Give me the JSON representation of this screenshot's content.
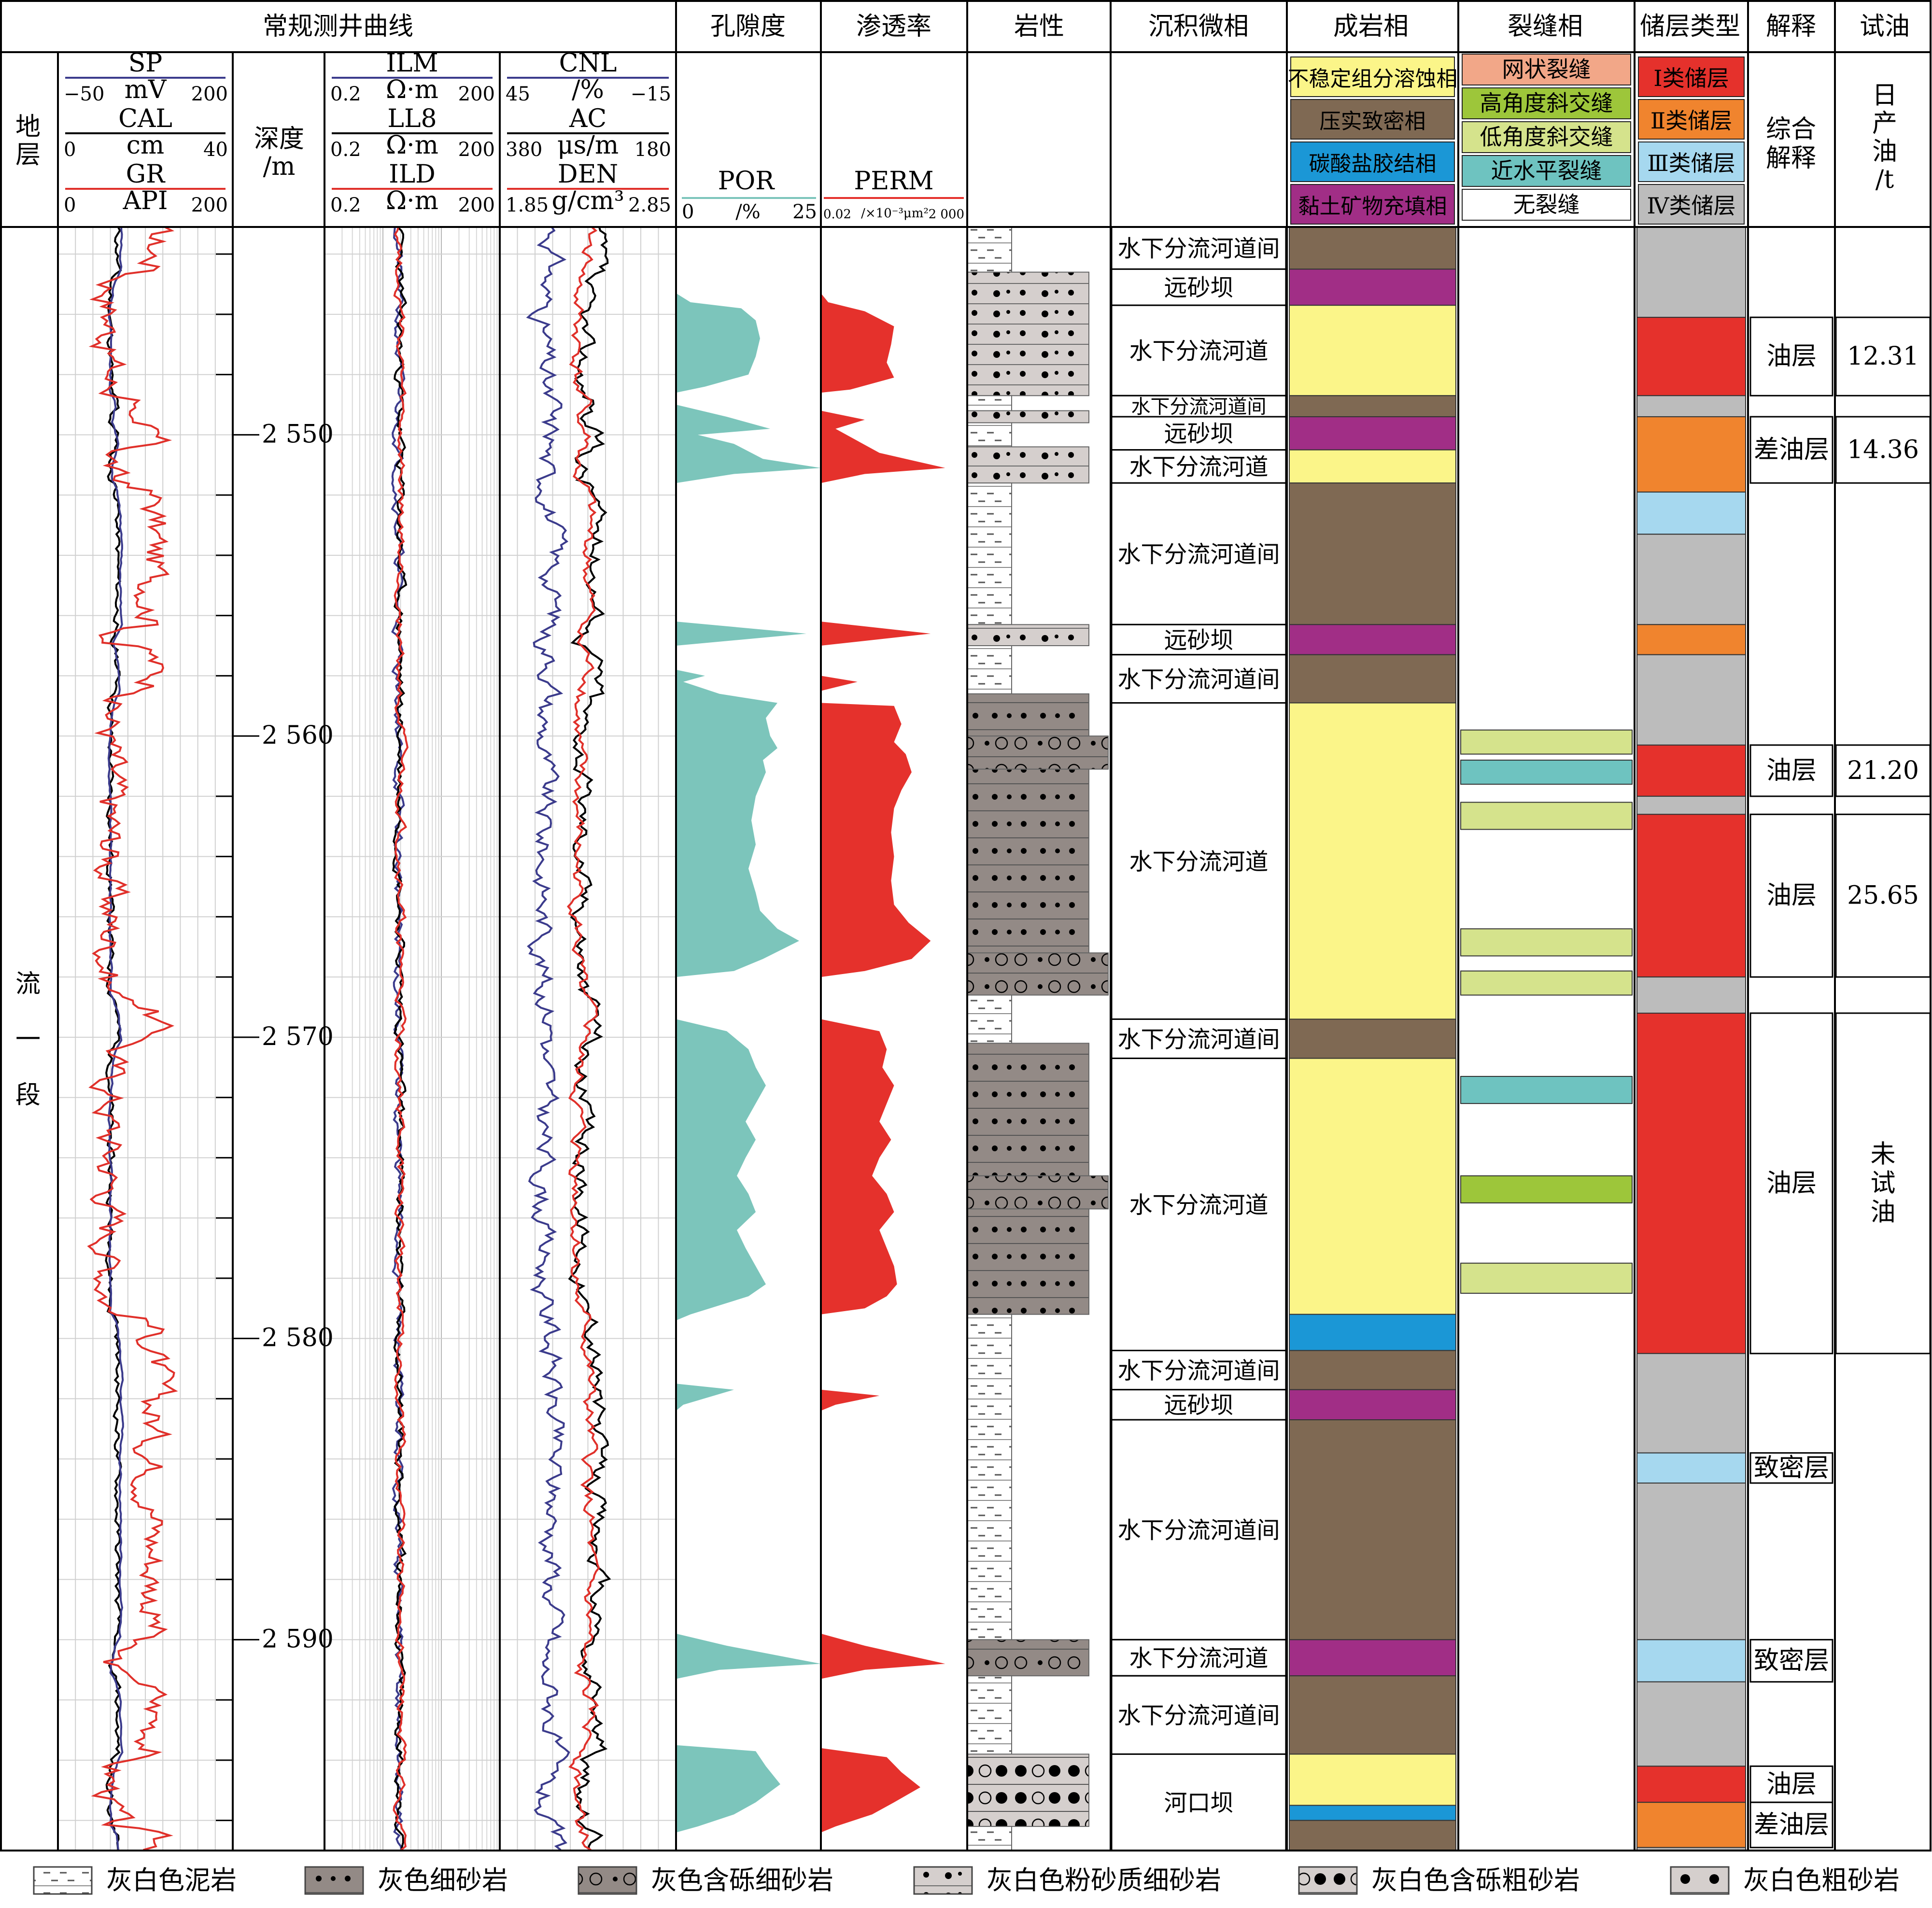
{
  "header": {
    "curves_group": "常规测井曲线",
    "porosity": "孔隙度",
    "permeability": "渗透率",
    "lithology": "岩性",
    "microfacies": "沉积微相",
    "diagenetic": "成岩相",
    "fracture": "裂缝相",
    "reservoir_type": "储层类型",
    "interpretation": "解释",
    "oil_test": "试油"
  },
  "subheader": {
    "formation": "地层",
    "depth_label": "深度",
    "depth_unit": "/m",
    "track1": [
      {
        "name": "SP",
        "unit": "mV",
        "min": "−50",
        "max": "200",
        "color": "#3b3b8c"
      },
      {
        "name": "CAL",
        "unit": "cm",
        "min": "0",
        "max": "40",
        "color": "#000000"
      },
      {
        "name": "GR",
        "unit": "API",
        "min": "0",
        "max": "200",
        "color": "#e0302a"
      }
    ],
    "track2": [
      {
        "name": "ILM",
        "unit": "Ω·m",
        "min": "0.2",
        "max": "200",
        "color": "#3b3b8c"
      },
      {
        "name": "LL8",
        "unit": "Ω·m",
        "min": "0.2",
        "max": "200",
        "color": "#000000"
      },
      {
        "name": "ILD",
        "unit": "Ω·m",
        "min": "0.2",
        "max": "200",
        "color": "#e0302a"
      }
    ],
    "track3": [
      {
        "name": "CNL",
        "unit": "/%",
        "min": "45",
        "max": "−15",
        "color": "#3b3b8c"
      },
      {
        "name": "AC",
        "unit": "μs/m",
        "min": "380",
        "max": "180",
        "color": "#000000"
      },
      {
        "name": "DEN",
        "unit": "g/cm³",
        "min": "1.85",
        "max": "2.85",
        "color": "#e0302a"
      }
    ],
    "por": {
      "name": "POR",
      "unit": "/%",
      "min": "0",
      "max": "25",
      "color": "#7cc5bb"
    },
    "perm": {
      "name": "PERM",
      "unit": "/×10⁻³μm²",
      "min": "0.02",
      "max": "2 000",
      "color": "#e5312c"
    },
    "interp_label": "综合解释",
    "oil_label": "日产油/t"
  },
  "diagenetic_legend": [
    {
      "label": "不稳定组分溶蚀相",
      "color": "#fbf589"
    },
    {
      "label": "压实致密相",
      "color": "#7f6953"
    },
    {
      "label": "碳酸盐胶结相",
      "color": "#1b97d6"
    },
    {
      "label": "黏土矿物充填相",
      "color": "#a12e86"
    }
  ],
  "fracture_legend": [
    {
      "label": "网状裂缝",
      "color": "#f2a788"
    },
    {
      "label": "高角度斜交缝",
      "color": "#9dc63a"
    },
    {
      "label": "低角度斜交缝",
      "color": "#d5e38c"
    },
    {
      "label": "近水平裂缝",
      "color": "#6ec3c0"
    },
    {
      "label": "无裂缝",
      "color": "#ffffff"
    }
  ],
  "reservoir_legend": [
    {
      "label": "Ⅰ类储层",
      "color": "#e5312c"
    },
    {
      "label": "Ⅱ类储层",
      "color": "#f0842e"
    },
    {
      "label": "Ⅲ类储层",
      "color": "#a6d8ef"
    },
    {
      "label": "Ⅳ类储层",
      "color": "#bcbcbc"
    }
  ],
  "formation_name": "流一段",
  "depth_scale": {
    "top": 2543.1,
    "bottom": 2597.0,
    "ticks": [
      2550,
      2560,
      2570,
      2580,
      2590
    ],
    "tick_labels": [
      "2 550",
      "2 560",
      "2 570",
      "2 580",
      "2 590"
    ]
  },
  "microfacies": [
    {
      "top": 2543.1,
      "bottom": 2544.5,
      "label": "水下分流河道间"
    },
    {
      "top": 2544.5,
      "bottom": 2545.7,
      "label": "远砂坝"
    },
    {
      "top": 2545.7,
      "bottom": 2548.7,
      "label": "水下分流河道"
    },
    {
      "top": 2548.7,
      "bottom": 2549.4,
      "label": "水下分流河道间"
    },
    {
      "top": 2549.4,
      "bottom": 2550.5,
      "label": "远砂坝"
    },
    {
      "top": 2550.5,
      "bottom": 2551.6,
      "label": "水下分流河道"
    },
    {
      "top": 2551.6,
      "bottom": 2556.3,
      "label": "水下分流河道间"
    },
    {
      "top": 2556.3,
      "bottom": 2557.3,
      "label": "远砂坝"
    },
    {
      "top": 2557.3,
      "bottom": 2558.9,
      "label": "水下分流河道间"
    },
    {
      "top": 2558.9,
      "bottom": 2569.4,
      "label": "水下分流河道"
    },
    {
      "top": 2569.4,
      "bottom": 2570.7,
      "label": "水下分流河道间"
    },
    {
      "top": 2570.7,
      "bottom": 2580.4,
      "label": "水下分流河道"
    },
    {
      "top": 2580.4,
      "bottom": 2581.7,
      "label": "水下分流河道间"
    },
    {
      "top": 2581.7,
      "bottom": 2582.7,
      "label": "远砂坝"
    },
    {
      "top": 2582.7,
      "bottom": 2590.0,
      "label": "水下分流河道间"
    },
    {
      "top": 2590.0,
      "bottom": 2591.2,
      "label": "水下分流河道"
    },
    {
      "top": 2591.2,
      "bottom": 2593.8,
      "label": "水下分流河道间"
    },
    {
      "top": 2593.8,
      "bottom": 2597.0,
      "label": "河口坝"
    }
  ],
  "diagenetic_intervals": [
    {
      "top": 2543.1,
      "bottom": 2544.5,
      "color": "#7f6953"
    },
    {
      "top": 2544.5,
      "bottom": 2545.7,
      "color": "#a12e86"
    },
    {
      "top": 2545.7,
      "bottom": 2548.7,
      "color": "#fbf589"
    },
    {
      "top": 2548.7,
      "bottom": 2549.4,
      "color": "#7f6953"
    },
    {
      "top": 2549.4,
      "bottom": 2550.5,
      "color": "#a12e86"
    },
    {
      "top": 2550.5,
      "bottom": 2551.6,
      "color": "#fbf589"
    },
    {
      "top": 2551.6,
      "bottom": 2556.3,
      "color": "#7f6953"
    },
    {
      "top": 2556.3,
      "bottom": 2557.3,
      "color": "#a12e86"
    },
    {
      "top": 2557.3,
      "bottom": 2558.9,
      "color": "#7f6953"
    },
    {
      "top": 2558.9,
      "bottom": 2569.4,
      "color": "#fbf589"
    },
    {
      "top": 2569.4,
      "bottom": 2570.7,
      "color": "#7f6953"
    },
    {
      "top": 2570.7,
      "bottom": 2579.2,
      "color": "#fbf589"
    },
    {
      "top": 2579.2,
      "bottom": 2580.4,
      "color": "#1b97d6"
    },
    {
      "top": 2580.4,
      "bottom": 2581.7,
      "color": "#7f6953"
    },
    {
      "top": 2581.7,
      "bottom": 2582.7,
      "color": "#a12e86"
    },
    {
      "top": 2582.7,
      "bottom": 2590.0,
      "color": "#7f6953"
    },
    {
      "top": 2590.0,
      "bottom": 2591.2,
      "color": "#a12e86"
    },
    {
      "top": 2591.2,
      "bottom": 2593.8,
      "color": "#7f6953"
    },
    {
      "top": 2593.8,
      "bottom": 2595.5,
      "color": "#fbf589"
    },
    {
      "top": 2595.5,
      "bottom": 2596.0,
      "color": "#1b97d6"
    },
    {
      "top": 2596.0,
      "bottom": 2597.0,
      "color": "#7f6953"
    }
  ],
  "fracture_intervals": [
    {
      "top": 2559.8,
      "bottom": 2560.6,
      "color": "#d5e38c"
    },
    {
      "top": 2560.8,
      "bottom": 2561.6,
      "color": "#6ec3c0"
    },
    {
      "top": 2562.2,
      "bottom": 2563.1,
      "color": "#d5e38c"
    },
    {
      "top": 2566.4,
      "bottom": 2567.3,
      "color": "#d5e38c"
    },
    {
      "top": 2567.8,
      "bottom": 2568.6,
      "color": "#d5e38c"
    },
    {
      "top": 2571.3,
      "bottom": 2572.2,
      "color": "#6ec3c0"
    },
    {
      "top": 2574.6,
      "bottom": 2575.5,
      "color": "#9dc63a"
    },
    {
      "top": 2577.5,
      "bottom": 2578.5,
      "color": "#d5e38c"
    }
  ],
  "reservoir_intervals": [
    {
      "top": 2543.1,
      "bottom": 2546.1,
      "color": "#bcbcbc"
    },
    {
      "top": 2546.1,
      "bottom": 2548.7,
      "color": "#e5312c"
    },
    {
      "top": 2548.7,
      "bottom": 2549.4,
      "color": "#bcbcbc"
    },
    {
      "top": 2549.4,
      "bottom": 2551.9,
      "color": "#f0842e"
    },
    {
      "top": 2551.9,
      "bottom": 2553.3,
      "color": "#a6d8ef"
    },
    {
      "top": 2553.3,
      "bottom": 2556.3,
      "color": "#bcbcbc"
    },
    {
      "top": 2556.3,
      "bottom": 2557.3,
      "color": "#f0842e"
    },
    {
      "top": 2557.3,
      "bottom": 2560.3,
      "color": "#bcbcbc"
    },
    {
      "top": 2560.3,
      "bottom": 2562.0,
      "color": "#e5312c"
    },
    {
      "top": 2562.0,
      "bottom": 2562.6,
      "color": "#bcbcbc"
    },
    {
      "top": 2562.6,
      "bottom": 2568.0,
      "color": "#e5312c"
    },
    {
      "top": 2568.0,
      "bottom": 2569.2,
      "color": "#bcbcbc"
    },
    {
      "top": 2569.2,
      "bottom": 2580.5,
      "color": "#e5312c"
    },
    {
      "top": 2580.5,
      "bottom": 2583.8,
      "color": "#bcbcbc"
    },
    {
      "top": 2583.8,
      "bottom": 2584.8,
      "color": "#a6d8ef"
    },
    {
      "top": 2584.8,
      "bottom": 2590.0,
      "color": "#bcbcbc"
    },
    {
      "top": 2590.0,
      "bottom": 2591.4,
      "color": "#a6d8ef"
    },
    {
      "top": 2591.4,
      "bottom": 2594.2,
      "color": "#bcbcbc"
    },
    {
      "top": 2594.2,
      "bottom": 2595.4,
      "color": "#e5312c"
    },
    {
      "top": 2595.4,
      "bottom": 2596.9,
      "color": "#f0842e"
    },
    {
      "top": 2596.9,
      "bottom": 2597.0,
      "color": "#bcbcbc"
    }
  ],
  "interpretation": [
    {
      "top": 2546.1,
      "bottom": 2548.7,
      "label": "油层"
    },
    {
      "top": 2549.4,
      "bottom": 2551.6,
      "label": "差油层"
    },
    {
      "top": 2560.3,
      "bottom": 2562.0,
      "label": "油层"
    },
    {
      "top": 2562.6,
      "bottom": 2568.0,
      "label": "油层"
    },
    {
      "top": 2569.2,
      "bottom": 2580.5,
      "label": "油层"
    },
    {
      "top": 2583.8,
      "bottom": 2584.8,
      "label": "致密层"
    },
    {
      "top": 2590.0,
      "bottom": 2591.4,
      "label": "致密层"
    },
    {
      "top": 2594.2,
      "bottom": 2595.4,
      "label": "油层"
    },
    {
      "top": 2595.4,
      "bottom": 2596.9,
      "label": "差油层"
    }
  ],
  "oil_test": [
    {
      "top": 2546.1,
      "bottom": 2548.7,
      "label": "12.31"
    },
    {
      "top": 2549.4,
      "bottom": 2551.6,
      "label": "14.36"
    },
    {
      "top": 2560.3,
      "bottom": 2562.0,
      "label": "21.20"
    },
    {
      "top": 2562.6,
      "bottom": 2568.0,
      "label": "25.65"
    },
    {
      "top": 2569.2,
      "bottom": 2580.5,
      "label": "未试油"
    }
  ],
  "lithology_intervals": [
    {
      "top": 2543.1,
      "bottom": 2544.6,
      "type": "mud"
    },
    {
      "top": 2544.6,
      "bottom": 2548.7,
      "type": "silty"
    },
    {
      "top": 2548.7,
      "bottom": 2549.2,
      "type": "mud"
    },
    {
      "top": 2549.2,
      "bottom": 2549.6,
      "type": "silty"
    },
    {
      "top": 2549.6,
      "bottom": 2550.4,
      "type": "mud"
    },
    {
      "top": 2550.4,
      "bottom": 2551.6,
      "type": "silty"
    },
    {
      "top": 2551.6,
      "bottom": 2556.3,
      "type": "mud"
    },
    {
      "top": 2556.3,
      "bottom": 2557.0,
      "type": "silty"
    },
    {
      "top": 2557.0,
      "bottom": 2558.6,
      "type": "mud"
    },
    {
      "top": 2558.6,
      "bottom": 2560.0,
      "type": "fine"
    },
    {
      "top": 2560.0,
      "bottom": 2561.1,
      "type": "pebbly_fine"
    },
    {
      "top": 2561.1,
      "bottom": 2567.2,
      "type": "fine"
    },
    {
      "top": 2567.2,
      "bottom": 2568.6,
      "type": "pebbly_fine"
    },
    {
      "top": 2568.6,
      "bottom": 2570.2,
      "type": "mud"
    },
    {
      "top": 2570.2,
      "bottom": 2574.6,
      "type": "fine"
    },
    {
      "top": 2574.6,
      "bottom": 2575.7,
      "type": "pebbly_fine"
    },
    {
      "top": 2575.7,
      "bottom": 2579.2,
      "type": "fine"
    },
    {
      "top": 2579.2,
      "bottom": 2590.0,
      "type": "mud"
    },
    {
      "top": 2590.0,
      "bottom": 2591.2,
      "type": "pebbly_fine"
    },
    {
      "top": 2591.2,
      "bottom": 2593.8,
      "type": "mud"
    },
    {
      "top": 2593.8,
      "bottom": 2596.2,
      "type": "pebbly_coarse"
    },
    {
      "top": 2596.2,
      "bottom": 2597.0,
      "type": "mud"
    }
  ],
  "lith_legend": [
    {
      "type": "mud",
      "label": "灰白色泥岩"
    },
    {
      "type": "fine",
      "label": "灰色细砂岩"
    },
    {
      "type": "pebbly_fine",
      "label": "灰色含砾细砂岩"
    },
    {
      "type": "silty",
      "label": "灰白色粉砂质细砂岩"
    },
    {
      "type": "pebbly_coarse",
      "label": "灰白色含砾粗砂岩"
    },
    {
      "type": "coarse",
      "label": "灰白色粗砂岩"
    }
  ],
  "por_profile": [
    [
      2543.1,
      0
    ],
    [
      2545.3,
      0
    ],
    [
      2545.6,
      0.1
    ],
    [
      2545.8,
      0.45
    ],
    [
      2546.2,
      0.55
    ],
    [
      2546.8,
      0.58
    ],
    [
      2547.4,
      0.55
    ],
    [
      2548.0,
      0.5
    ],
    [
      2548.4,
      0.2
    ],
    [
      2548.6,
      0
    ],
    [
      2549.0,
      0
    ],
    [
      2549.4,
      0.35
    ],
    [
      2549.8,
      0.65
    ],
    [
      2550.0,
      0.15
    ],
    [
      2550.3,
      0.4
    ],
    [
      2550.8,
      0.6
    ],
    [
      2551.1,
      1.0
    ],
    [
      2551.3,
      0.4
    ],
    [
      2551.6,
      0
    ],
    [
      2556.2,
      0
    ],
    [
      2556.6,
      0.9
    ],
    [
      2557.0,
      0
    ],
    [
      2557.8,
      0
    ],
    [
      2558.0,
      0.2
    ],
    [
      2558.2,
      0.05
    ],
    [
      2558.6,
      0.3
    ],
    [
      2558.9,
      0.7
    ],
    [
      2559.4,
      0.62
    ],
    [
      2560.0,
      0.65
    ],
    [
      2560.4,
      0.7
    ],
    [
      2560.8,
      0.6
    ],
    [
      2561.2,
      0.62
    ],
    [
      2562.0,
      0.55
    ],
    [
      2562.8,
      0.52
    ],
    [
      2563.6,
      0.55
    ],
    [
      2564.4,
      0.5
    ],
    [
      2565.2,
      0.55
    ],
    [
      2565.8,
      0.58
    ],
    [
      2566.4,
      0.7
    ],
    [
      2566.8,
      0.85
    ],
    [
      2567.4,
      0.6
    ],
    [
      2567.8,
      0.4
    ],
    [
      2568.0,
      0
    ],
    [
      2569.4,
      0
    ],
    [
      2569.8,
      0.35
    ],
    [
      2570.4,
      0.5
    ],
    [
      2571.0,
      0.55
    ],
    [
      2571.6,
      0.62
    ],
    [
      2572.2,
      0.55
    ],
    [
      2572.8,
      0.48
    ],
    [
      2573.4,
      0.55
    ],
    [
      2574.0,
      0.48
    ],
    [
      2574.6,
      0.42
    ],
    [
      2575.2,
      0.5
    ],
    [
      2575.8,
      0.55
    ],
    [
      2576.4,
      0.42
    ],
    [
      2577.0,
      0.48
    ],
    [
      2577.6,
      0.55
    ],
    [
      2578.2,
      0.62
    ],
    [
      2578.6,
      0.5
    ],
    [
      2579.2,
      0.1
    ],
    [
      2579.4,
      0
    ],
    [
      2581.5,
      0
    ],
    [
      2581.7,
      0.4
    ],
    [
      2582.2,
      0.05
    ],
    [
      2582.4,
      0
    ],
    [
      2589.8,
      0
    ],
    [
      2590.2,
      0.35
    ],
    [
      2590.8,
      1.0
    ],
    [
      2591.0,
      0.3
    ],
    [
      2591.3,
      0
    ],
    [
      2593.5,
      0
    ],
    [
      2593.7,
      0.55
    ],
    [
      2594.2,
      0.62
    ],
    [
      2594.8,
      0.72
    ],
    [
      2595.4,
      0.55
    ],
    [
      2595.8,
      0.4
    ],
    [
      2596.2,
      0.15
    ],
    [
      2596.4,
      0
    ]
  ],
  "perm_profile": [
    [
      2543.1,
      0
    ],
    [
      2545.3,
      0
    ],
    [
      2545.6,
      0.05
    ],
    [
      2545.9,
      0.3
    ],
    [
      2546.4,
      0.5
    ],
    [
      2547.0,
      0.48
    ],
    [
      2547.6,
      0.45
    ],
    [
      2548.1,
      0.5
    ],
    [
      2548.5,
      0.2
    ],
    [
      2548.6,
      0
    ],
    [
      2549.2,
      0
    ],
    [
      2549.5,
      0.3
    ],
    [
      2549.8,
      0.1
    ],
    [
      2550.2,
      0.25
    ],
    [
      2550.6,
      0.4
    ],
    [
      2551.1,
      0.85
    ],
    [
      2551.3,
      0.3
    ],
    [
      2551.6,
      0
    ],
    [
      2556.2,
      0
    ],
    [
      2556.6,
      0.75
    ],
    [
      2557.0,
      0
    ],
    [
      2558.0,
      0
    ],
    [
      2558.2,
      0.25
    ],
    [
      2558.5,
      0
    ],
    [
      2558.9,
      0
    ],
    [
      2559.0,
      0.5
    ],
    [
      2559.6,
      0.55
    ],
    [
      2560.2,
      0.5
    ],
    [
      2560.6,
      0.58
    ],
    [
      2561.2,
      0.62
    ],
    [
      2561.8,
      0.55
    ],
    [
      2562.4,
      0.5
    ],
    [
      2563.2,
      0.48
    ],
    [
      2564.0,
      0.5
    ],
    [
      2564.8,
      0.48
    ],
    [
      2565.6,
      0.5
    ],
    [
      2566.2,
      0.6
    ],
    [
      2566.8,
      0.75
    ],
    [
      2567.4,
      0.62
    ],
    [
      2567.8,
      0.3
    ],
    [
      2568.0,
      0
    ],
    [
      2569.4,
      0
    ],
    [
      2569.8,
      0.4
    ],
    [
      2570.4,
      0.45
    ],
    [
      2571.0,
      0.42
    ],
    [
      2571.6,
      0.5
    ],
    [
      2572.2,
      0.45
    ],
    [
      2572.8,
      0.4
    ],
    [
      2573.4,
      0.48
    ],
    [
      2574.0,
      0.4
    ],
    [
      2574.6,
      0.35
    ],
    [
      2575.2,
      0.45
    ],
    [
      2575.8,
      0.5
    ],
    [
      2576.4,
      0.4
    ],
    [
      2577.0,
      0.45
    ],
    [
      2577.6,
      0.5
    ],
    [
      2578.2,
      0.52
    ],
    [
      2578.6,
      0.45
    ],
    [
      2579.0,
      0.3
    ],
    [
      2579.2,
      0
    ],
    [
      2581.7,
      0
    ],
    [
      2581.9,
      0.4
    ],
    [
      2582.2,
      0.1
    ],
    [
      2582.4,
      0
    ],
    [
      2589.8,
      0
    ],
    [
      2590.2,
      0.3
    ],
    [
      2590.8,
      0.85
    ],
    [
      2591.0,
      0.3
    ],
    [
      2591.3,
      0
    ],
    [
      2593.6,
      0
    ],
    [
      2593.9,
      0.45
    ],
    [
      2594.4,
      0.55
    ],
    [
      2594.9,
      0.68
    ],
    [
      2595.4,
      0.5
    ],
    [
      2595.8,
      0.35
    ],
    [
      2596.2,
      0.1
    ],
    [
      2596.4,
      0
    ]
  ]
}
